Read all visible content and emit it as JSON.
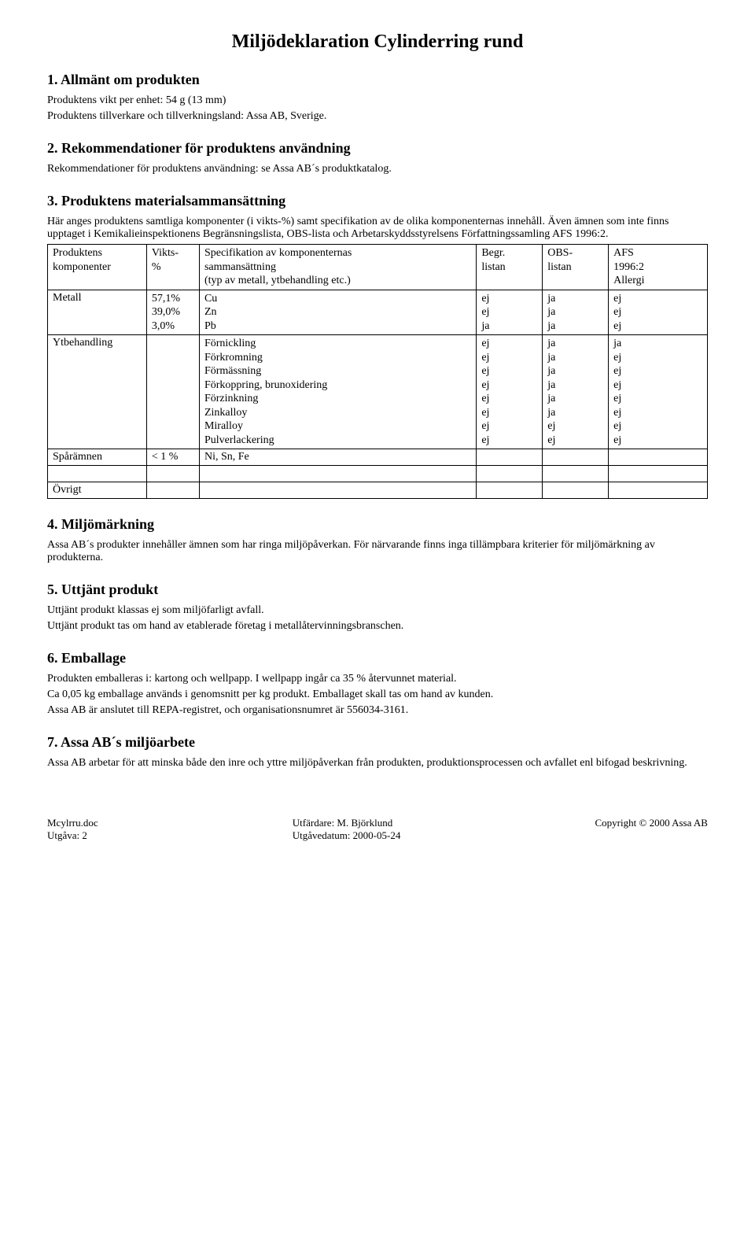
{
  "title": "Miljödeklaration Cylinderring rund",
  "sections": {
    "s1": {
      "heading": "1. Allmänt om produkten",
      "line1": "Produktens vikt per enhet: 54 g (13 mm)",
      "line2": "Produktens tillverkare och tillverkningsland: Assa AB, Sverige."
    },
    "s2": {
      "heading": "2. Rekommendationer för produktens användning",
      "line1": "Rekommendationer för produktens användning: se Assa AB´s produktkatalog."
    },
    "s3": {
      "heading": "3. Produktens materialsammansättning",
      "intro1": "Här anges produktens samtliga komponenter (i vikts-%) samt specifikation av de olika komponenternas innehåll. Även ämnen som inte finns upptaget i Kemikalieinspektionens Begränsningslista, OBS-lista och Arbetarskyddsstyrelsens Författningssamling AFS 1996:2.",
      "table": {
        "header": {
          "c0": "Produktens\nkomponenter",
          "c1": "Vikts-\n%",
          "c2": "Specifikation av komponenternas\nsammansättning\n(typ av metall, ytbehandling etc.)",
          "c3": "Begr.\nlistan",
          "c4": "OBS-\nlistan",
          "c5": "AFS\n1996:2\nAllergi"
        },
        "rows": [
          {
            "c0": "Metall",
            "c1": "57,1%\n39,0%\n3,0%",
            "c2": "Cu\nZn\nPb",
            "c3": "ej\nej\nja",
            "c4": "ja\nja\nja",
            "c5": "ej\nej\nej"
          },
          {
            "c0": "Ytbehandling",
            "c1": "",
            "c2": "Förnickling\nFörkromning\nFörmässning\nFörkoppring, brunoxidering\nFörzinkning\nZinkalloy\nMiralloy\nPulverlackering",
            "c3": "ej\nej\nej\nej\nej\nej\nej\nej",
            "c4": "ja\nja\nja\nja\nja\nja\nej\nej",
            "c5": "ja\nej\nej\nej\nej\nej\nej\nej"
          },
          {
            "c0": "Spårämnen",
            "c1": "< 1 %",
            "c2": "Ni, Sn, Fe",
            "c3": "",
            "c4": "",
            "c5": ""
          },
          {
            "c0": "Övrigt",
            "c1": "",
            "c2": "",
            "c3": "",
            "c4": "",
            "c5": ""
          }
        ],
        "col_widths": [
          "15%",
          "8%",
          "42%",
          "10%",
          "10%",
          "15%"
        ]
      }
    },
    "s4": {
      "heading": "4. Miljömärkning",
      "line1": "Assa AB´s produkter innehåller ämnen som har ringa miljöpåverkan. För närvarande finns inga tillämpbara kriterier för miljömärkning av produkterna."
    },
    "s5": {
      "heading": "5. Uttjänt produkt",
      "line1": "Uttjänt produkt klassas ej som miljöfarligt avfall.",
      "line2": "Uttjänt produkt tas om hand av etablerade företag i metallåtervinningsbranschen."
    },
    "s6": {
      "heading": "6. Emballage",
      "line1": "Produkten emballeras i: kartong och wellpapp. I wellpapp ingår ca 35 % återvunnet material.",
      "line2": "Ca 0,05 kg emballage används i genomsnitt per kg produkt. Emballaget skall tas om hand av kunden.",
      "line3": "Assa AB är anslutet till REPA-registret, och organisationsnumret är 556034-3161."
    },
    "s7": {
      "heading": "7. Assa AB´s miljöarbete",
      "line1": "Assa AB arbetar för att minska både den inre och yttre miljöpåverkan från produkten, produktionsprocessen och avfallet enl bifogad beskrivning."
    }
  },
  "footer": {
    "left": "Mcylrru.doc\nUtgåva: 2",
    "center": "Utfärdare: M. Björklund\nUtgåvedatum: 2000-05-24",
    "right": "Copyright © 2000 Assa AB"
  }
}
